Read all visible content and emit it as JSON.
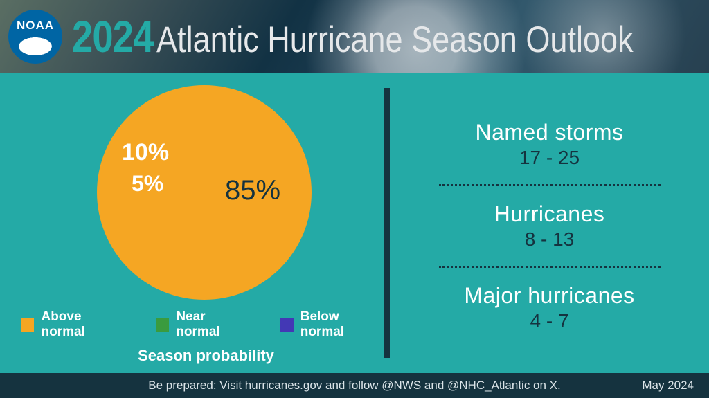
{
  "header": {
    "logo_text": "NOAA",
    "year": "2024",
    "title": "Atlantic Hurricane Season Outlook"
  },
  "pie": {
    "type": "pie",
    "background_color": "#24aaa6",
    "slices": [
      {
        "label": "Above normal",
        "value": 85,
        "display": "85%",
        "color": "#f5a623"
      },
      {
        "label": "Near normal",
        "value": 10,
        "display": "10%",
        "color": "#3a9b3e"
      },
      {
        "label": "Below normal",
        "value": 5,
        "display": "5%",
        "color": "#4338b5"
      }
    ],
    "start_angle_deg": 170,
    "direction": "ccw",
    "label_fontsize_major": 40,
    "label_fontsize_minor": 33,
    "label_color_major": "#15333f",
    "label_color_minor": "#ffffff",
    "caption": "Season probability",
    "legend_fontsize": 19
  },
  "stats": [
    {
      "label": "Named storms",
      "value": "17 - 25"
    },
    {
      "label": "Hurricanes",
      "value": "8 - 13"
    },
    {
      "label": "Major hurricanes",
      "value": "4 - 7"
    }
  ],
  "footer": {
    "text": "Be prepared: Visit hurricanes.gov and follow @NWS and @NHC_Atlantic on X.",
    "date": "May 2024"
  },
  "colors": {
    "teal": "#24aaa6",
    "dark": "#15333f",
    "white": "#ffffff"
  }
}
